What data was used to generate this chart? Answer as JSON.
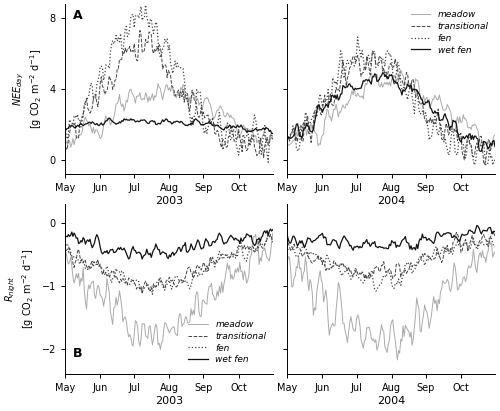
{
  "panel_A": {
    "ylim": [
      -0.8,
      8.8
    ],
    "yticks": [
      0,
      4,
      8
    ],
    "label": "A"
  },
  "panel_B": {
    "ylim": [
      -2.4,
      0.3
    ],
    "yticks": [
      0,
      -1,
      -2
    ],
    "label": "B"
  },
  "month_ticks": [
    0,
    31,
    61,
    92,
    122,
    153
  ],
  "month_labels": [
    "May",
    "Jun",
    "Jul",
    "Aug",
    "Sep",
    "Oct"
  ],
  "line_styles": {
    "meadow": {
      "color": "#aaaaaa",
      "linestyle": "-",
      "linewidth": 0.7
    },
    "transitional": {
      "color": "#444444",
      "linestyle": "--",
      "linewidth": 0.7
    },
    "fen": {
      "color": "#444444",
      "linestyle": ":",
      "linewidth": 0.9
    },
    "wet fen": {
      "color": "#111111",
      "linestyle": "-",
      "linewidth": 0.9
    }
  },
  "legend_entries": [
    "meadow",
    "transitional",
    "fen",
    "wet fen"
  ],
  "n_days": 184,
  "noise_kernel": 5
}
